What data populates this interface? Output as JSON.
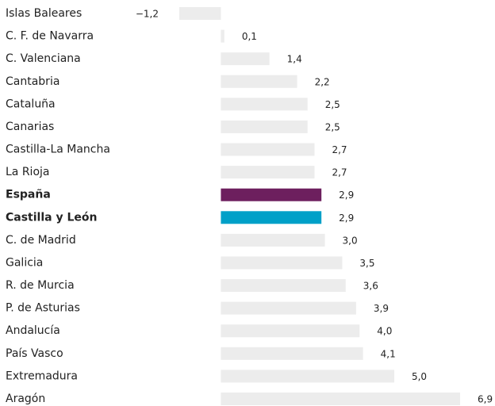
{
  "chart_data": {
    "type": "bar",
    "orientation": "horizontal",
    "categories": [
      "Islas Baleares",
      "C. F. de Navarra",
      "C. Valenciana",
      "Cantabria",
      "Cataluña",
      "Canarias",
      "Castilla-La Mancha",
      "La Rioja",
      "España",
      "Castilla y León",
      "C. de Madrid",
      "Galicia",
      "R. de Murcia",
      "P. de Asturias",
      "Andalucía",
      "País Vasco",
      "Extremadura",
      "Aragón"
    ],
    "values": [
      -1.2,
      0.1,
      1.4,
      2.2,
      2.5,
      2.5,
      2.7,
      2.7,
      2.9,
      2.9,
      3.0,
      3.5,
      3.6,
      3.9,
      4.0,
      4.1,
      5.0,
      6.9
    ],
    "value_labels": [
      "−1,2",
      "0,1",
      "1,4",
      "2,2",
      "2,5",
      "2,5",
      "2,7",
      "2,7",
      "2,9",
      "2,9",
      "3,0",
      "3,5",
      "3,6",
      "3,9",
      "4,0",
      "4,1",
      "5,0",
      "6,9"
    ],
    "color": "#ececec",
    "colors": [
      "#ececec",
      "#ececec",
      "#ececec",
      "#ececec",
      "#ececec",
      "#ececec",
      "#ececec",
      "#ececec",
      "#6d1f5e",
      "#00a0c8",
      "#ececec",
      "#ececec",
      "#ececec",
      "#ececec",
      "#ececec",
      "#ececec",
      "#ececec",
      "#ececec"
    ],
    "xlim": [
      -1.2,
      6.9
    ]
  }
}
